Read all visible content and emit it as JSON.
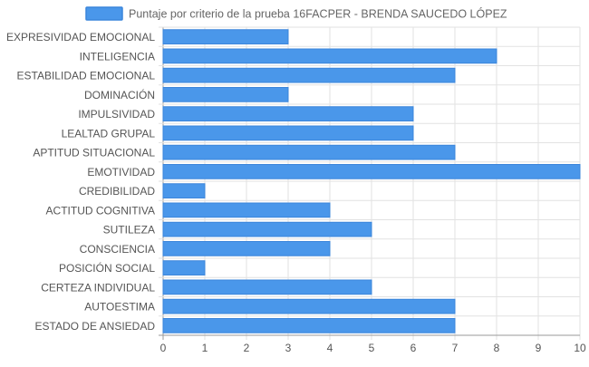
{
  "chart_data": {
    "type": "bar",
    "orientation": "horizontal",
    "categories": [
      "EXPRESIVIDAD EMOCIONAL",
      "INTELIGENCIA",
      "ESTABILIDAD EMOCIONAL",
      "DOMINACIÓN",
      "IMPULSIVIDAD",
      "LEALTAD GRUPAL",
      "APTITUD SITUACIONAL",
      "EMOTIVIDAD",
      "CREDIBILIDAD",
      "ACTITUD COGNITIVA",
      "SUTILEZA",
      "CONSCIENCIA",
      "POSICIÓN SOCIAL",
      "CERTEZA INDIVIDUAL",
      "AUTOESTIMA",
      "ESTADO DE ANSIEDAD"
    ],
    "series": [
      {
        "name": "Puntaje por criterio de la prueba 16FACPER - BRENDA SAUCEDO LÓPEZ",
        "values": [
          3,
          8,
          7,
          3,
          6,
          6,
          7,
          10,
          1,
          4,
          5,
          4,
          1,
          5,
          7,
          7
        ],
        "color": "#4a97ea",
        "border_color": "#3a85db"
      }
    ],
    "xlim": [
      0,
      10
    ],
    "x_ticks": [
      "0",
      "1",
      "2",
      "3",
      "4",
      "5",
      "6",
      "7",
      "8",
      "9",
      "10"
    ],
    "grid": true,
    "legend_position": "top",
    "colors": {
      "grid": "#e2e2e2",
      "axis": "#999999",
      "label": "#555555"
    }
  }
}
